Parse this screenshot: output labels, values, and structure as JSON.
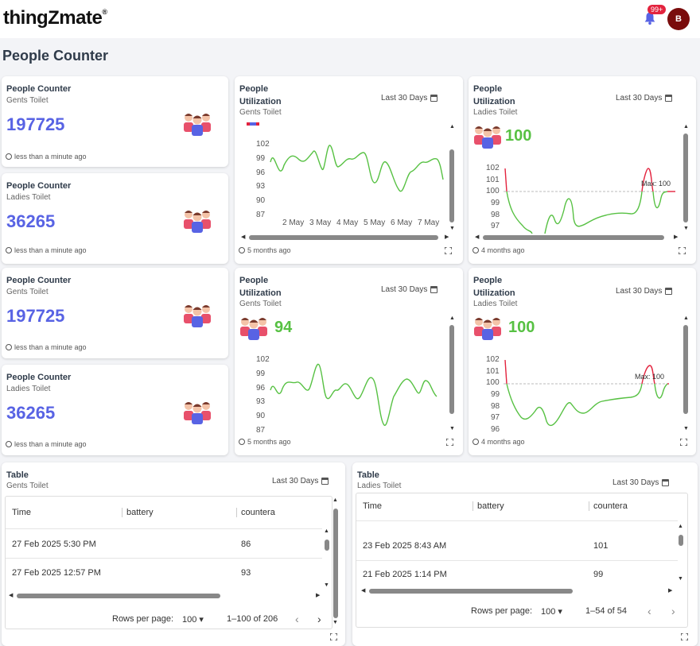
{
  "header": {
    "logo": "thingZmate",
    "logo_mark": "®",
    "notif_badge": "99+",
    "avatar_initial": "B"
  },
  "page_title": "People Counter",
  "counters": [
    {
      "title": "People Counter",
      "subtitle": "Gents Toilet",
      "value": "197725",
      "updated": "less than a minute ago"
    },
    {
      "title": "People Counter",
      "subtitle": "Ladies Toilet",
      "value": "36265",
      "updated": "less than a minute ago"
    },
    {
      "title": "People Counter",
      "subtitle": "Gents Toilet",
      "value": "197725",
      "updated": "less than a minute ago"
    },
    {
      "title": "People Counter",
      "subtitle": "Ladies Toilet",
      "value": "36265",
      "updated": "less than a minute ago"
    }
  ],
  "util": [
    {
      "title1": "People",
      "title2": "Utilization",
      "subtitle": "Gents Toilet",
      "range": "Last 30 Days",
      "updated": "5 months ago"
    },
    {
      "title1": "People",
      "title2": "Utilization",
      "subtitle": "Ladies Toilet",
      "range": "Last 30 Days",
      "value": "100",
      "updated": "4 months ago",
      "max_label": "Max: 100"
    },
    {
      "title1": "People",
      "title2": "Utilization",
      "subtitle": "Gents Toilet",
      "range": "Last 30 Days",
      "value": "94",
      "updated": "5 months ago"
    },
    {
      "title1": "People",
      "title2": "Utilization",
      "subtitle": "Ladies Toilet",
      "range": "Last 30 Days",
      "value": "100",
      "updated": "4 months ago",
      "max_label": "Max: 100"
    }
  ],
  "chart_data": [
    {
      "type": "line",
      "x": [
        "2 May",
        "3 May",
        "4 May",
        "5 May",
        "6 May",
        "7 May"
      ],
      "yticks": [
        102,
        99,
        96,
        93,
        90,
        87
      ],
      "ylim": [
        87,
        102
      ],
      "series": [
        {
          "color": "#57c143"
        }
      ]
    },
    {
      "type": "line",
      "yticks": [
        102,
        101,
        100,
        99,
        98,
        97
      ],
      "ylim": [
        97,
        102
      ],
      "threshold": 100,
      "series": [
        {
          "color": "#57c143"
        },
        {
          "color": "#e3233e"
        }
      ]
    },
    {
      "type": "line",
      "yticks": [
        102,
        99,
        96,
        93,
        90,
        87
      ],
      "ylim": [
        87,
        102
      ],
      "series": [
        {
          "color": "#57c143"
        }
      ]
    },
    {
      "type": "line",
      "yticks": [
        102,
        101,
        100,
        99,
        98,
        97,
        96
      ],
      "ylim": [
        96,
        102
      ],
      "threshold": 100,
      "series": [
        {
          "color": "#57c143"
        },
        {
          "color": "#e3233e"
        }
      ]
    }
  ],
  "tables": [
    {
      "title": "Table",
      "subtitle": "Gents Toilet",
      "range": "Last 30 Days",
      "columns": [
        "Time",
        "battery",
        "countera"
      ],
      "rows": [
        {
          "time": "27 Feb 2025 5:30 PM",
          "countera": "86"
        },
        {
          "time": "27 Feb 2025 12:57 PM",
          "countera": "93"
        }
      ],
      "rows_per_page_label": "Rows per page:",
      "rows_per_page": "100",
      "range_text": "1–100 of 206"
    },
    {
      "title": "Table",
      "subtitle": "Ladies Toilet",
      "range": "Last 30 Days",
      "columns": [
        "Time",
        "battery",
        "countera"
      ],
      "rows": [
        {
          "time": "23 Feb 2025 8:43 AM",
          "countera": "101"
        },
        {
          "time": "21 Feb 2025 1:14 PM",
          "countera": "99"
        }
      ],
      "rows_per_page_label": "Rows per page:",
      "rows_per_page": "100",
      "range_text": "1–54 of 54"
    }
  ],
  "icons": {
    "bell": "bell-icon",
    "calendar": "calendar-icon",
    "clock": "clock-icon",
    "people": "people-icon",
    "expand": "expand-icon"
  }
}
